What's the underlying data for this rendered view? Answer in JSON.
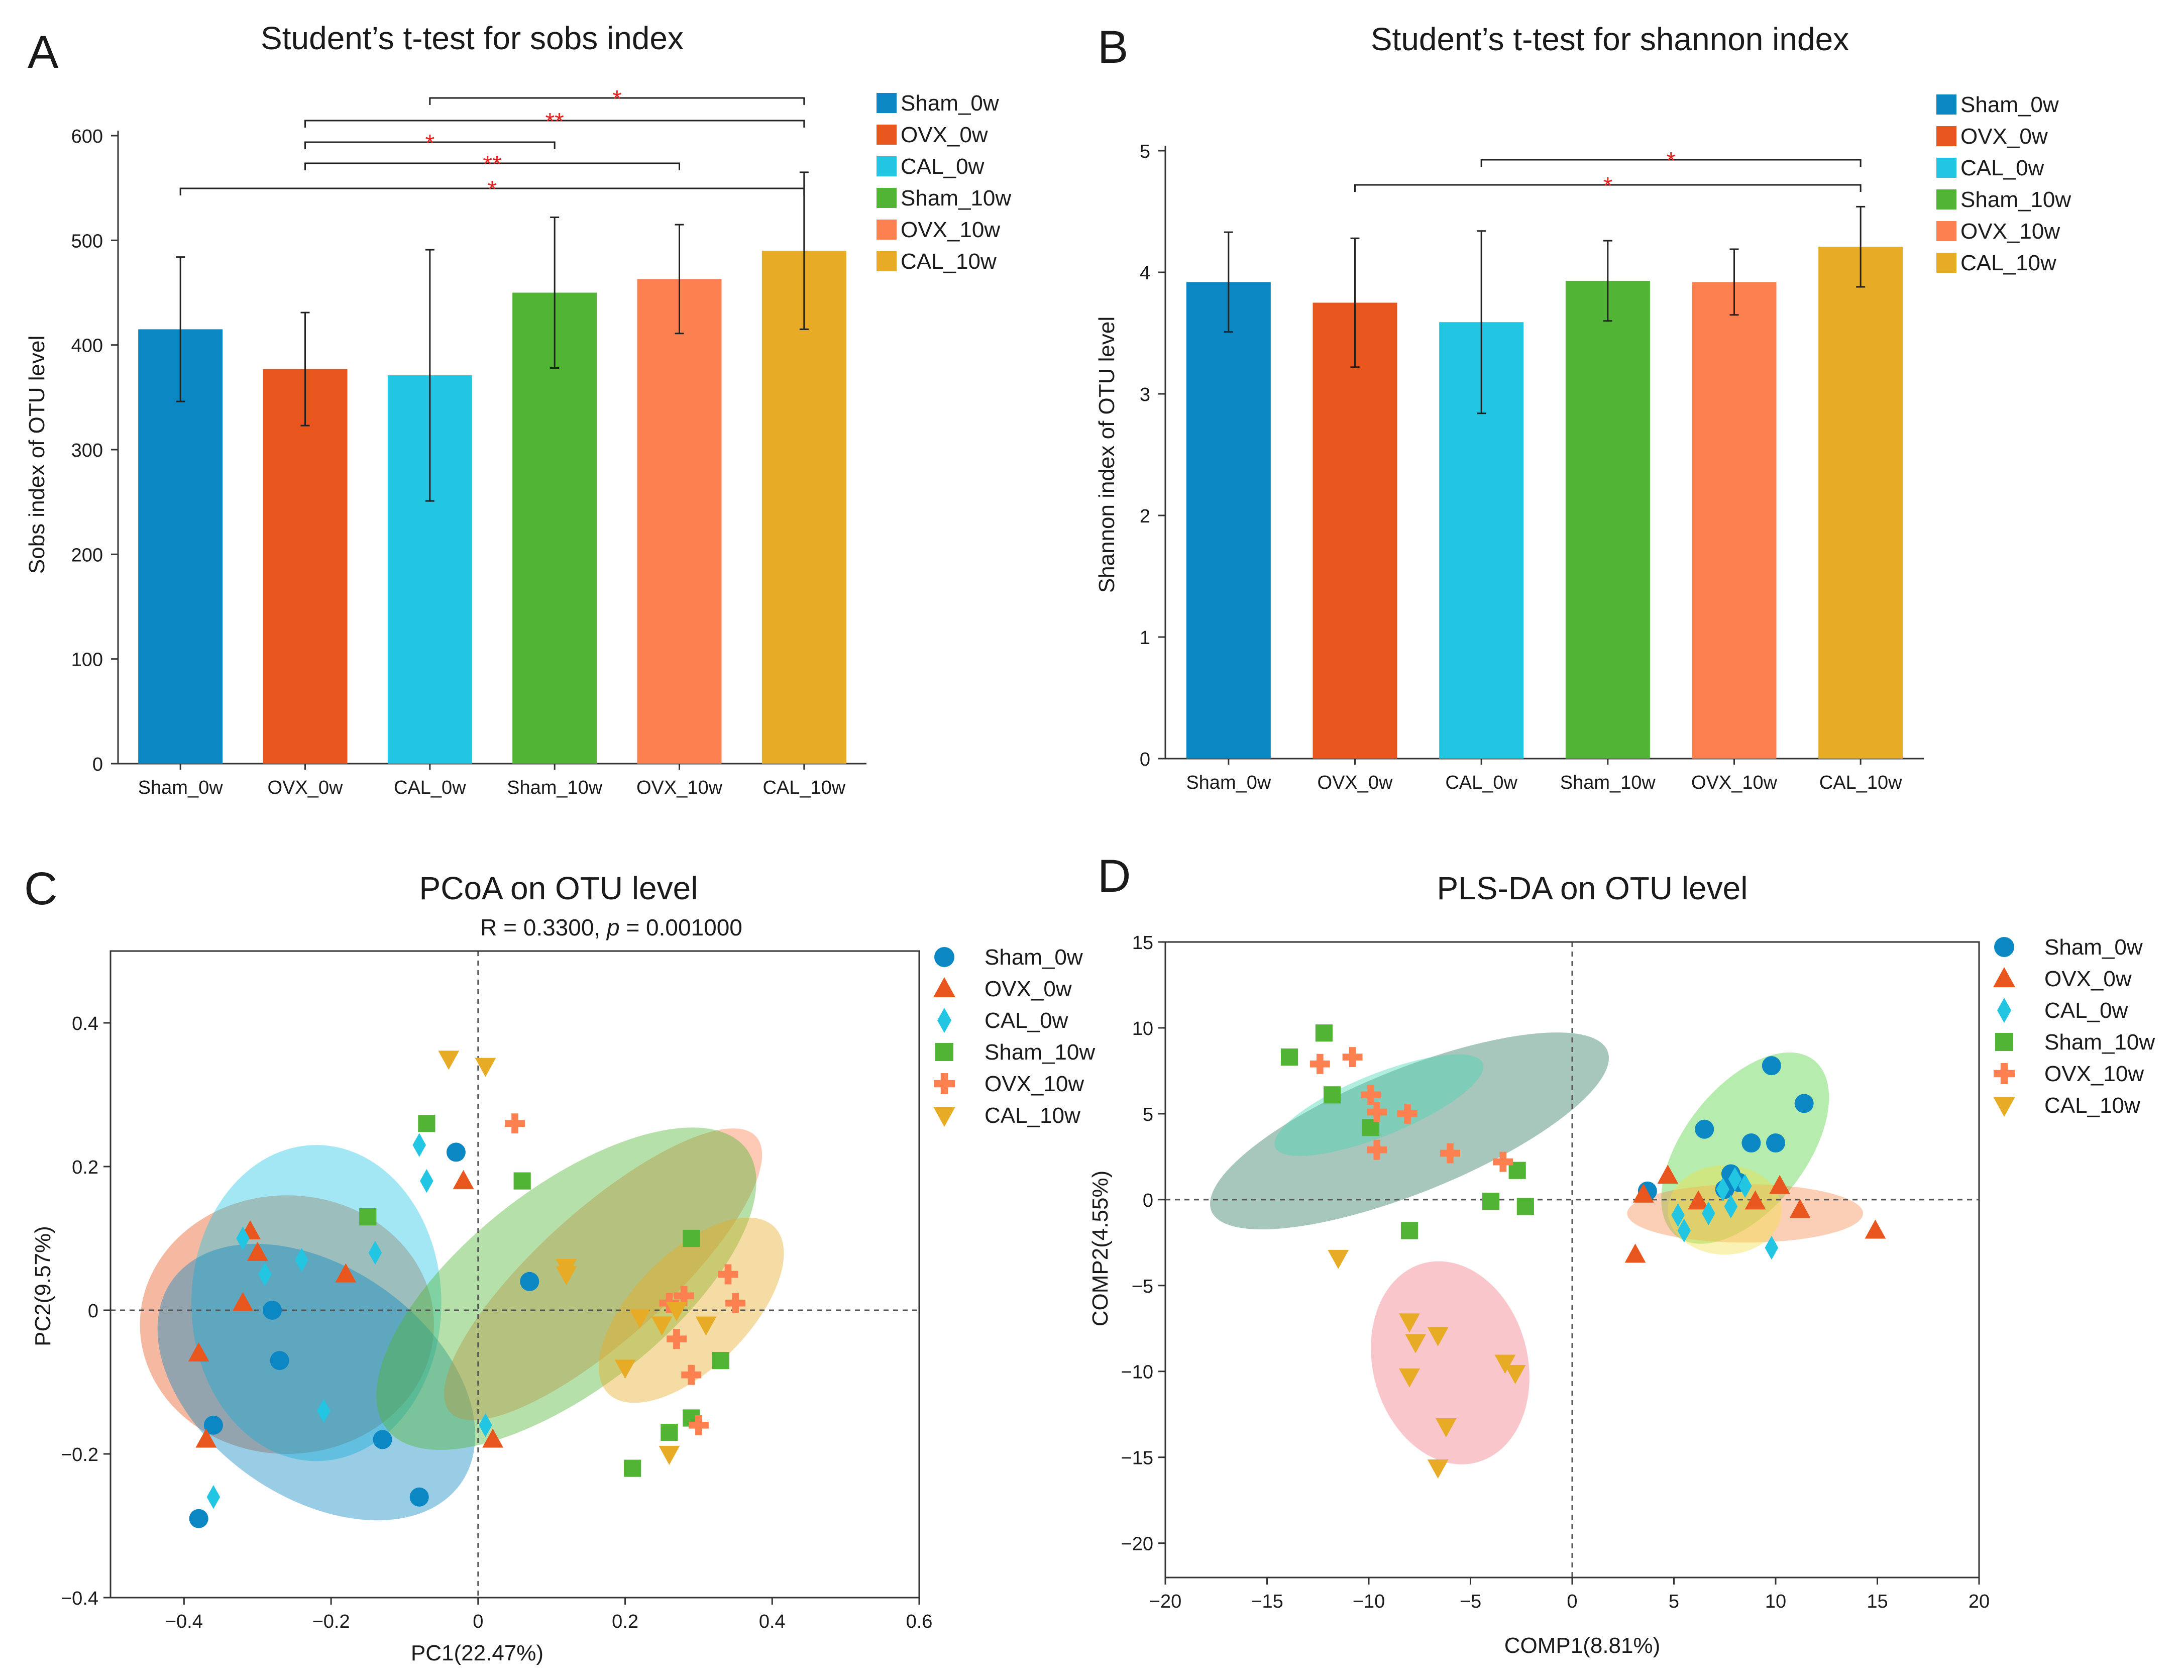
{
  "panels": {
    "A": "A",
    "B": "B",
    "C": "C",
    "D": "D"
  },
  "colors": {
    "Sham_0w": "#0b87c4",
    "OVX_0w": "#e8561e",
    "CAL_0w": "#22c6e3",
    "Sham_10w": "#52b435",
    "OVX_10w": "#fd8050",
    "CAL_10w": "#e7ab26",
    "sig": "#e8201e"
  },
  "chart_data": [
    {
      "id": "A",
      "type": "bar",
      "title": "Student’s t-test for sobs index",
      "ylabel": "Sobs index of OTU level",
      "xlabel": "",
      "ylim": [
        0,
        600
      ],
      "yticks": [
        0,
        100,
        200,
        300,
        400,
        500,
        600
      ],
      "categories": [
        "Sham_0w",
        "OVX_0w",
        "CAL_0w",
        "Sham_10w",
        "OVX_10w",
        "CAL_10w"
      ],
      "values": [
        415,
        377,
        371,
        450,
        463,
        490
      ],
      "errors": [
        69,
        54,
        120,
        72,
        52,
        75
      ],
      "legend": [
        "Sham_0w",
        "OVX_0w",
        "CAL_0w",
        "Sham_10w",
        "OVX_10w",
        "CAL_10w"
      ],
      "significance": [
        {
          "from": "CAL_0w",
          "to": "CAL_10w",
          "label": "*"
        },
        {
          "from": "OVX_0w",
          "to": "CAL_10w",
          "label": "**"
        },
        {
          "from": "OVX_0w",
          "to": "Sham_10w",
          "label": "*"
        },
        {
          "from": "OVX_0w",
          "to": "OVX_10w",
          "label": "**"
        },
        {
          "from": "Sham_0w",
          "to": "CAL_10w",
          "label": "*"
        }
      ]
    },
    {
      "id": "B",
      "type": "bar",
      "title": "Student’s t-test for shannon index",
      "ylabel": "Shannon index of OTU level",
      "xlabel": "",
      "ylim": [
        0,
        5
      ],
      "yticks": [
        0,
        1,
        2,
        3,
        4,
        5
      ],
      "categories": [
        "Sham_0w",
        "OVX_0w",
        "CAL_0w",
        "Sham_10w",
        "OVX_10w",
        "CAL_10w"
      ],
      "values": [
        3.92,
        3.75,
        3.59,
        3.93,
        3.92,
        4.21
      ],
      "errors": [
        0.41,
        0.53,
        0.75,
        0.33,
        0.27,
        0.33
      ],
      "legend": [
        "Sham_0w",
        "OVX_0w",
        "CAL_0w",
        "Sham_10w",
        "OVX_10w",
        "CAL_10w"
      ],
      "significance": [
        {
          "from": "CAL_0w",
          "to": "CAL_10w",
          "label": "*"
        },
        {
          "from": "OVX_0w",
          "to": "CAL_10w",
          "label": "*"
        }
      ]
    },
    {
      "id": "C",
      "type": "scatter",
      "title": "PCoA on OTU level",
      "subtitle_prefix": "R = 0.3300, ",
      "subtitle_p": "p",
      "subtitle_suffix": " = 0.001000",
      "xlabel": "PC1(22.47%)",
      "ylabel": "PC2(9.57%)",
      "xlim": [
        -0.5,
        0.6
      ],
      "ylim": [
        -0.4,
        0.5
      ],
      "xticks": [
        -0.4,
        -0.2,
        0,
        0.2,
        0.4,
        0.6
      ],
      "xticklabels": [
        "−0.4",
        "−0.2",
        "0",
        "0.2",
        "0.4",
        "0.6"
      ],
      "yticks": [
        -0.4,
        -0.2,
        0,
        0.2,
        0.4
      ],
      "yticklabels": [
        "−0.4",
        "−0.2",
        "0",
        "0.2",
        "0.4"
      ],
      "legend": [
        "Sham_0w",
        "OVX_0w",
        "CAL_0w",
        "Sham_10w",
        "OVX_10w",
        "CAL_10w"
      ],
      "ellipses": [
        {
          "group": "OVX_0w",
          "cx": -0.26,
          "cy": -0.02,
          "rx": 0.2,
          "ry": 0.18,
          "angle": 0
        },
        {
          "group": "CAL_0w",
          "cx": -0.22,
          "cy": 0.01,
          "rx": 0.17,
          "ry": 0.22,
          "angle": 0
        },
        {
          "group": "Sham_0w",
          "cx": -0.22,
          "cy": -0.1,
          "rx": 0.24,
          "ry": 0.16,
          "angle": 35
        },
        {
          "group": "OVX_10w",
          "cx": 0.17,
          "cy": 0.05,
          "rx": 0.28,
          "ry": 0.09,
          "angle": -42
        },
        {
          "group": "Sham_10w",
          "cx": 0.12,
          "cy": 0.03,
          "rx": 0.31,
          "ry": 0.14,
          "angle": -38
        },
        {
          "group": "CAL_10w",
          "cx": 0.29,
          "cy": 0.0,
          "rx": 0.16,
          "ry": 0.08,
          "angle": -45
        }
      ],
      "series": [
        {
          "name": "Sham_0w",
          "marker": "circle",
          "x": [
            -0.03,
            0.07,
            -0.28,
            -0.27,
            -0.36,
            -0.13,
            -0.08,
            -0.38
          ],
          "y": [
            0.22,
            0.04,
            0.0,
            -0.07,
            -0.16,
            -0.18,
            -0.26,
            -0.29
          ]
        },
        {
          "name": "OVX_0w",
          "marker": "triangle",
          "x": [
            -0.31,
            -0.3,
            -0.18,
            -0.32,
            -0.38,
            -0.37,
            -0.02,
            0.02
          ],
          "y": [
            0.11,
            0.08,
            0.05,
            0.01,
            -0.06,
            -0.18,
            0.18,
            -0.18
          ]
        },
        {
          "name": "CAL_0w",
          "marker": "diamond",
          "x": [
            -0.08,
            -0.07,
            -0.32,
            -0.29,
            -0.24,
            -0.14,
            -0.21,
            -0.36,
            0.01
          ],
          "y": [
            0.23,
            0.18,
            0.1,
            0.05,
            0.07,
            0.08,
            -0.14,
            -0.26,
            -0.16
          ]
        },
        {
          "name": "Sham_10w",
          "marker": "square",
          "x": [
            -0.07,
            0.06,
            -0.15,
            0.29,
            0.33,
            0.26,
            0.29,
            0.21
          ],
          "y": [
            0.26,
            0.18,
            0.13,
            0.1,
            -0.07,
            -0.17,
            -0.15,
            -0.22
          ]
        },
        {
          "name": "OVX_10w",
          "marker": "plus",
          "x": [
            0.05,
            0.34,
            0.35,
            0.28,
            0.26,
            0.27,
            0.29,
            0.3
          ],
          "y": [
            0.26,
            0.05,
            0.01,
            0.02,
            0.01,
            -0.04,
            -0.09,
            -0.16
          ]
        },
        {
          "name": "CAL_10w",
          "marker": "tri-down",
          "x": [
            -0.04,
            0.01,
            0.12,
            0.12,
            0.22,
            0.25,
            0.27,
            0.31,
            0.2,
            0.26
          ],
          "y": [
            0.35,
            0.34,
            0.06,
            0.05,
            -0.01,
            -0.02,
            0.0,
            -0.02,
            -0.08,
            -0.2
          ]
        }
      ]
    },
    {
      "id": "D",
      "type": "scatter",
      "title": "PLS-DA on OTU level",
      "xlabel": "COMP1(8.81%)",
      "ylabel": "COMP2(4.55%)",
      "xlim": [
        -20,
        20
      ],
      "ylim": [
        -22,
        15
      ],
      "xticks": [
        -20,
        -15,
        -10,
        -5,
        0,
        5,
        10,
        15,
        20
      ],
      "xticklabels": [
        "−20",
        "−15",
        "−10",
        "−5",
        "0",
        "5",
        "10",
        "15",
        "20"
      ],
      "yticks": [
        -20,
        -15,
        -10,
        -5,
        0,
        5,
        10,
        15
      ],
      "yticklabels": [
        "−20",
        "−15",
        "−10",
        "−5",
        "0",
        "5",
        "10",
        "15"
      ],
      "legend": [
        "Sham_0w",
        "OVX_0w",
        "CAL_0w",
        "Sham_10w",
        "OVX_10w",
        "CAL_10w"
      ],
      "ellipses": [
        {
          "group": "Sham_10w",
          "cx": -8.0,
          "cy": 4.0,
          "rx": 10.5,
          "ry": 3.6,
          "angle": -22,
          "fill": "#2e7860"
        },
        {
          "group": "OVX_10w",
          "cx": -9.5,
          "cy": 5.5,
          "rx": 5.5,
          "ry": 1.8,
          "angle": -22,
          "fill": "#48d6b4"
        },
        {
          "group": "CAL_10w",
          "cx": -6.0,
          "cy": -9.5,
          "rx": 3.8,
          "ry": 6.0,
          "angle": -15,
          "fill": "#ef7882"
        },
        {
          "group": "Sham_0w",
          "cx": 8.5,
          "cy": 3.0,
          "rx": 3.0,
          "ry": 6.5,
          "angle": 38,
          "fill": "#52d23c"
        },
        {
          "group": "OVX_0w",
          "cx": 8.5,
          "cy": -0.8,
          "rx": 5.8,
          "ry": 1.7,
          "angle": 0,
          "fill": "#f58c4e"
        },
        {
          "group": "CAL_0w",
          "cx": 7.5,
          "cy": -0.6,
          "rx": 2.8,
          "ry": 2.6,
          "angle": 0,
          "fill": "#f2e04a"
        }
      ],
      "series": [
        {
          "name": "Sham_0w",
          "marker": "circle",
          "x": [
            9.8,
            11.4,
            6.5,
            8.8,
            10.0,
            7.8,
            8.2,
            3.7,
            7.5
          ],
          "y": [
            7.8,
            5.6,
            4.1,
            3.3,
            3.3,
            1.5,
            1.0,
            0.5,
            0.6
          ]
        },
        {
          "name": "OVX_0w",
          "marker": "triangle",
          "x": [
            4.7,
            10.2,
            3.5,
            6.2,
            9.0,
            11.2,
            14.9,
            3.1
          ],
          "y": [
            1.4,
            0.8,
            0.3,
            -0.1,
            -0.1,
            -0.6,
            -1.8,
            -3.2
          ]
        },
        {
          "name": "CAL_0w",
          "marker": "diamond",
          "x": [
            8.0,
            8.5,
            7.4,
            6.7,
            5.2,
            7.8,
            5.5,
            9.8
          ],
          "y": [
            1.2,
            0.8,
            0.6,
            -0.8,
            -0.9,
            -0.4,
            -1.8,
            -2.8
          ]
        },
        {
          "name": "Sham_10w",
          "marker": "square",
          "x": [
            -12.2,
            -13.9,
            -11.8,
            -9.9,
            -2.7,
            -4.0,
            -2.3,
            -8.0
          ],
          "y": [
            9.7,
            8.3,
            6.1,
            4.2,
            1.7,
            -0.1,
            -0.4,
            -1.8
          ]
        },
        {
          "name": "OVX_10w",
          "marker": "plus",
          "x": [
            -10.8,
            -12.4,
            -9.9,
            -9.6,
            -8.1,
            -9.6,
            -6.0,
            -3.4
          ],
          "y": [
            8.3,
            7.9,
            6.1,
            5.1,
            5.0,
            2.9,
            2.7,
            2.2
          ]
        },
        {
          "name": "CAL_10w",
          "marker": "tri-down",
          "x": [
            -11.5,
            -8.0,
            -6.6,
            -7.7,
            -8.0,
            -3.3,
            -2.8,
            -6.2,
            -6.6
          ],
          "y": [
            -3.4,
            -7.1,
            -7.9,
            -8.3,
            -10.3,
            -9.5,
            -10.1,
            -13.2,
            -15.6
          ]
        }
      ]
    }
  ]
}
